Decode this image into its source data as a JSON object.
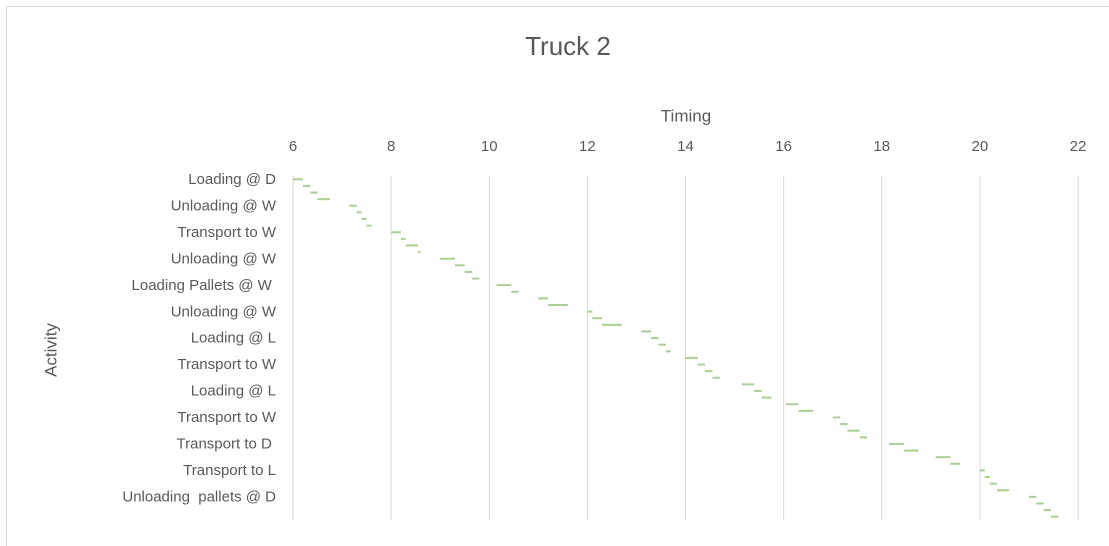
{
  "chart_data": {
    "type": "gantt",
    "title": "Truck 2",
    "x_label": "Timing",
    "y_label": "Activity",
    "categories": [
      "Loading @ D",
      null,
      null,
      null,
      "Unloading @ W",
      null,
      null,
      null,
      "Transport to W",
      null,
      null,
      null,
      "Unloading @ W",
      null,
      null,
      null,
      "Loading Pallets @ W ",
      null,
      null,
      null,
      "Unloading @ W",
      null,
      null,
      null,
      "Loading @ L",
      null,
      null,
      null,
      "Transport to W",
      null,
      null,
      null,
      "Loading @ L",
      null,
      null,
      null,
      "Transport to W",
      null,
      null,
      null,
      "Transport to D ",
      null,
      null,
      null,
      "Transport to L",
      null,
      null,
      null,
      "Unloading  pallets @ D",
      null,
      null,
      null
    ],
    "starts": [
      6.0,
      6.2,
      6.35,
      6.5,
      7.15,
      7.3,
      7.4,
      7.5,
      8.0,
      8.2,
      8.3,
      8.55,
      9.0,
      9.3,
      9.5,
      9.65,
      10.15,
      10.45,
      11.0,
      11.2,
      12.0,
      12.1,
      12.3,
      13.1,
      13.3,
      13.45,
      13.6,
      14.0,
      14.25,
      14.4,
      14.55,
      15.15,
      15.4,
      15.55,
      16.05,
      16.3,
      17.0,
      17.15,
      17.3,
      17.55,
      18.15,
      18.45,
      19.1,
      19.4,
      20.0,
      20.1,
      20.2,
      20.35,
      21.0,
      21.15,
      21.3,
      21.45
    ],
    "durations": [
      0.2,
      0.15,
      0.15,
      0.25,
      0.15,
      0.1,
      0.1,
      0.1,
      0.2,
      0.1,
      0.25,
      0.05,
      0.3,
      0.2,
      0.15,
      0.15,
      0.3,
      0.15,
      0.2,
      0.4,
      0.1,
      0.2,
      0.4,
      0.2,
      0.15,
      0.15,
      0.1,
      0.25,
      0.15,
      0.15,
      0.15,
      0.25,
      0.15,
      0.2,
      0.25,
      0.3,
      0.15,
      0.15,
      0.25,
      0.15,
      0.3,
      0.3,
      0.3,
      0.2,
      0.1,
      0.1,
      0.15,
      0.25,
      0.15,
      0.15,
      0.15,
      0.15
    ],
    "color": "#a9d18e",
    "xlim": [
      6,
      22
    ],
    "xticks": [
      6,
      8,
      10,
      12,
      14,
      16,
      18,
      20,
      22
    ],
    "grid": true
  }
}
